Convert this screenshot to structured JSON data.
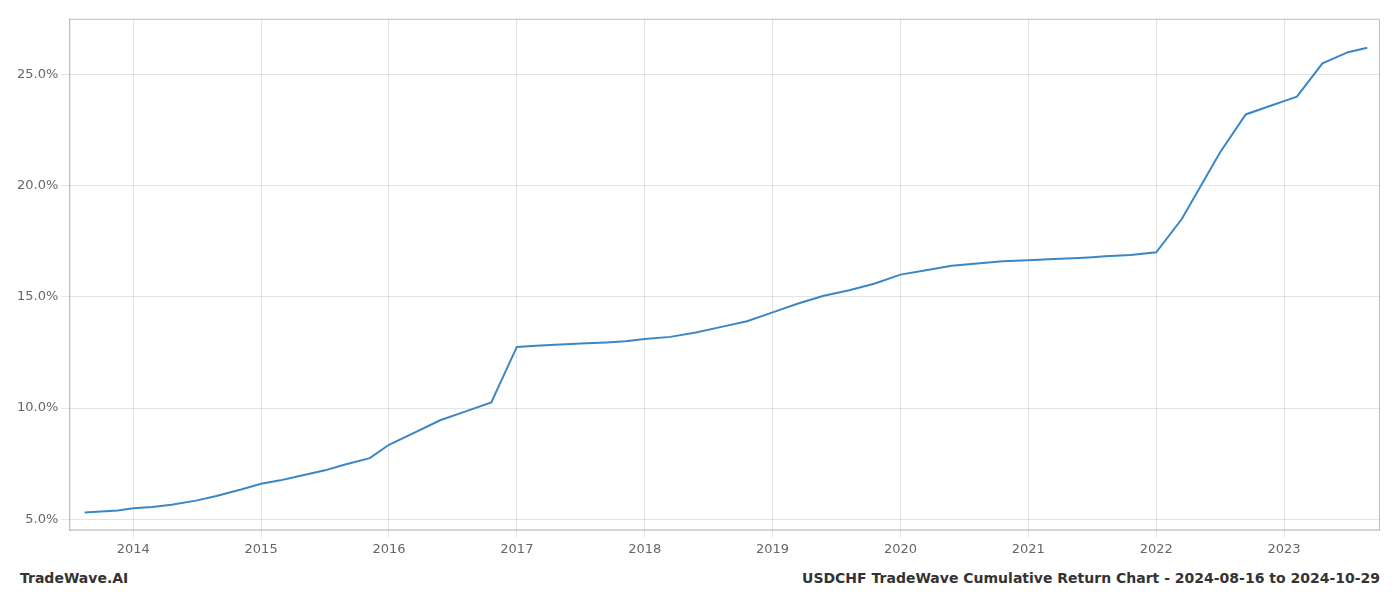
{
  "chart_data": {
    "type": "line",
    "title": "USDCHF TradeWave Cumulative Return Chart - 2024-08-16 to 2024-10-29",
    "annotations": [
      "TradeWave.AI"
    ],
    "color": "#3a87c8",
    "grid": true,
    "x": [
      2013.62,
      2013.75,
      2013.88,
      2014.0,
      2014.15,
      2014.3,
      2014.5,
      2014.65,
      2014.85,
      2015.0,
      2015.15,
      2015.3,
      2015.5,
      2015.65,
      2015.85,
      2016.0,
      2016.2,
      2016.4,
      2016.6,
      2016.8,
      2017.0,
      2017.15,
      2017.3,
      2017.5,
      2017.7,
      2017.85,
      2018.0,
      2018.2,
      2018.4,
      2018.6,
      2018.8,
      2019.0,
      2019.2,
      2019.4,
      2019.6,
      2019.8,
      2020.0,
      2020.2,
      2020.4,
      2020.6,
      2020.8,
      2021.0,
      2021.2,
      2021.4,
      2021.5,
      2021.6,
      2021.8,
      2022.0,
      2022.2,
      2022.5,
      2022.7,
      2022.9,
      2023.0,
      2023.1,
      2023.3,
      2023.5,
      2023.65
    ],
    "values": [
      5.3,
      5.35,
      5.4,
      5.5,
      5.55,
      5.65,
      5.85,
      6.05,
      6.35,
      6.6,
      6.75,
      6.95,
      7.2,
      7.45,
      7.75,
      8.35,
      8.9,
      9.45,
      9.85,
      10.25,
      12.75,
      12.8,
      12.85,
      12.9,
      12.95,
      13.0,
      13.1,
      13.2,
      13.4,
      13.65,
      13.9,
      14.3,
      14.7,
      15.05,
      15.3,
      15.6,
      16.0,
      16.2,
      16.4,
      16.5,
      16.6,
      16.65,
      16.7,
      16.75,
      16.78,
      16.82,
      16.88,
      17.0,
      18.5,
      21.5,
      23.2,
      23.6,
      23.8,
      24.0,
      25.5,
      26.0,
      26.2
    ],
    "xlim": [
      2013.5,
      2023.75
    ],
    "xticks": [
      2014,
      2015,
      2016,
      2017,
      2018,
      2019,
      2020,
      2021,
      2022,
      2023
    ],
    "ylim": [
      4.5,
      27.5
    ],
    "yticks": [
      {
        "value": 5.0,
        "label": "5.0%"
      },
      {
        "value": 10.0,
        "label": "10.0%"
      },
      {
        "value": 15.0,
        "label": "15.0%"
      },
      {
        "value": 20.0,
        "label": "20.0%"
      },
      {
        "value": 25.0,
        "label": "25.0%"
      }
    ]
  }
}
